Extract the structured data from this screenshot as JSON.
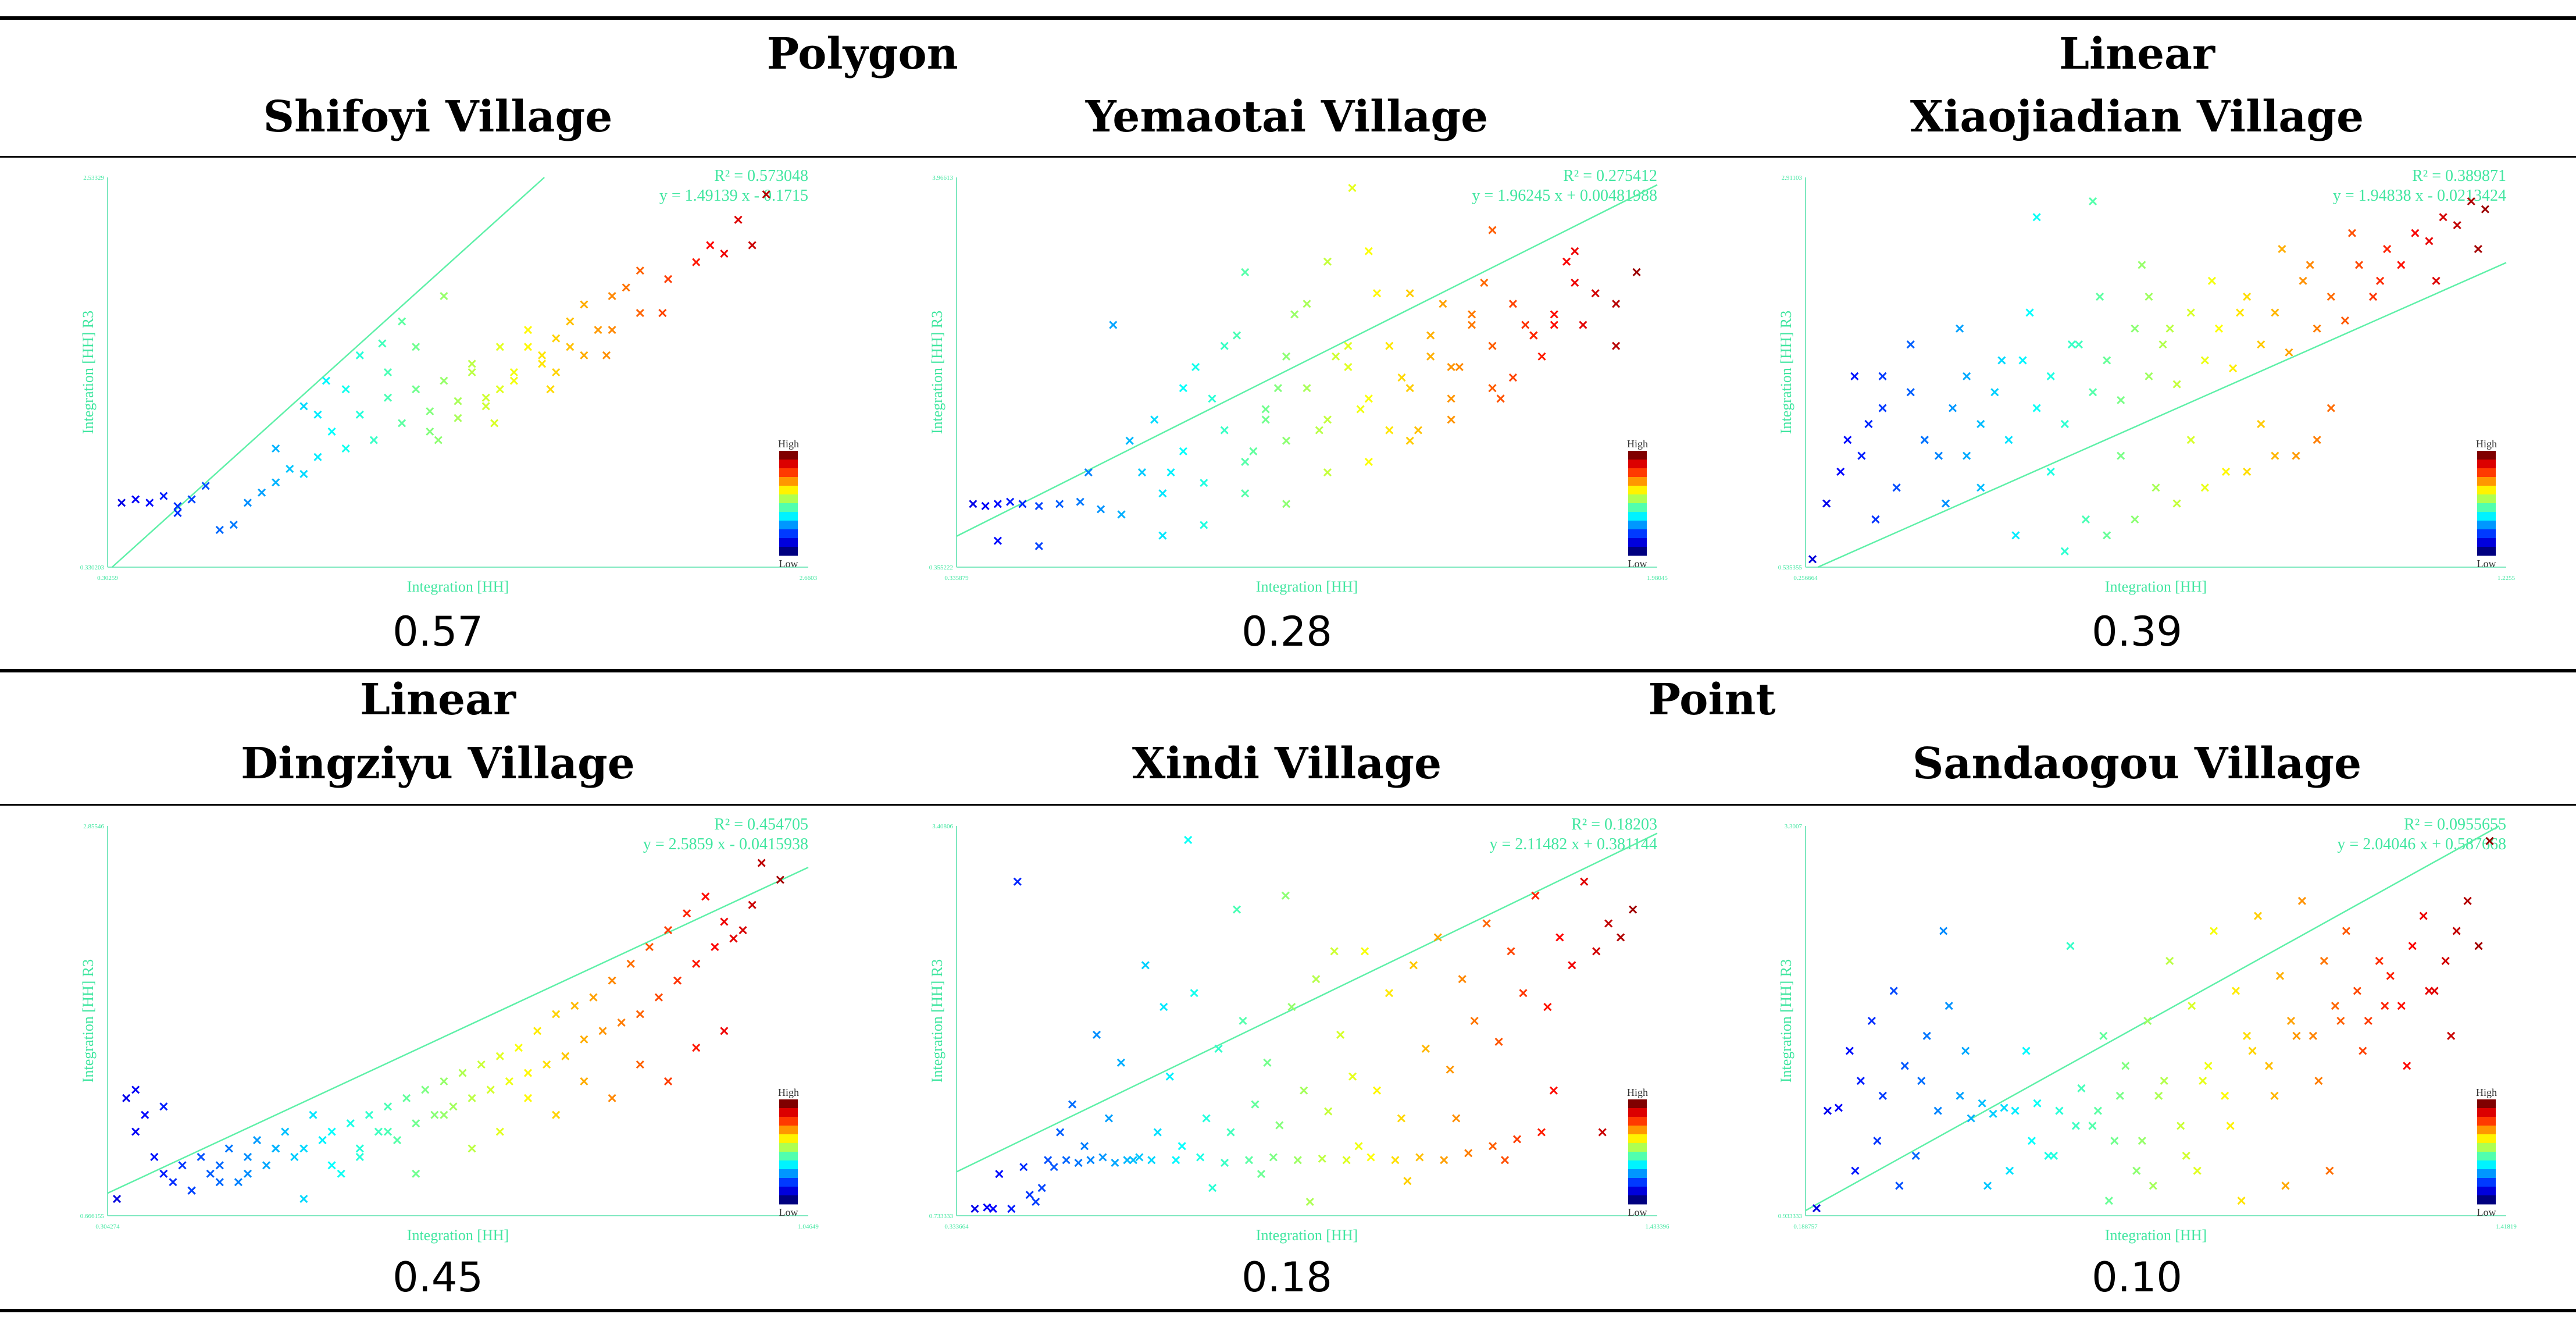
{
  "categories": {
    "polygon": "Polygon",
    "linear_top": "Linear",
    "linear_bottom": "Linear",
    "point": "Point"
  },
  "chart_data": [
    {
      "type": "scatter",
      "title": "Shifoyi Village",
      "category": "Polygon",
      "xlabel": "Integration [HH]",
      "ylabel": "Integration [HH] R3",
      "xlim": [
        0.3,
        2.8
      ],
      "ylim": [
        0.3,
        2.6
      ],
      "x_ticks": [
        "0.30259",
        "2.6603"
      ],
      "y_ticks": [
        "0.330203",
        "2.53329"
      ],
      "r2_label": "R² = 0.573048",
      "equation_label": "y = 1.49139 x - 0.1715",
      "r_squared": 0.573048,
      "slope": 1.49139,
      "intercept": -0.1715,
      "r_value_display": "0.57",
      "legend": {
        "high": "High",
        "low": "Low"
      },
      "x": [
        0.35,
        0.4,
        0.45,
        0.5,
        0.55,
        0.6,
        0.7,
        0.75,
        0.8,
        0.85,
        0.9,
        0.95,
        1.0,
        1.05,
        1.1,
        1.15,
        1.2,
        1.25,
        1.3,
        1.35,
        1.4,
        1.45,
        1.5,
        1.55,
        1.6,
        1.65,
        1.7,
        1.75,
        1.8,
        1.85,
        1.9,
        1.95,
        2.0,
        2.05,
        2.1,
        2.15,
        2.2,
        2.3,
        2.4,
        2.5,
        2.6,
        2.65,
        1.05,
        1.15,
        1.3,
        1.4,
        1.45,
        1.55,
        1.65,
        1.75,
        1.85,
        1.95,
        2.0,
        2.1,
        2.2,
        0.9,
        1.0,
        1.2,
        1.35,
        1.5,
        1.6,
        1.7,
        1.8,
        1.9,
        0.55,
        0.65,
        1.08,
        1.28,
        1.48,
        1.68,
        1.88,
        2.08,
        2.28,
        2.45,
        2.55
      ],
      "y": [
        0.68,
        0.7,
        0.68,
        0.72,
        0.66,
        0.7,
        0.52,
        0.55,
        0.68,
        0.74,
        0.8,
        0.88,
        0.85,
        0.95,
        1.1,
        1.0,
        1.2,
        1.05,
        1.3,
        1.15,
        1.35,
        1.22,
        1.4,
        1.28,
        1.5,
        1.3,
        1.6,
        1.45,
        1.7,
        1.55,
        1.65,
        1.75,
        1.85,
        1.7,
        1.9,
        1.95,
        2.05,
        2.0,
        2.1,
        2.15,
        2.2,
        2.5,
        1.2,
        1.35,
        1.45,
        1.6,
        1.1,
        1.18,
        1.25,
        1.4,
        1.5,
        1.6,
        1.55,
        1.7,
        1.8,
        1.0,
        1.25,
        1.55,
        1.75,
        1.9,
        1.45,
        1.35,
        1.6,
        1.45,
        0.62,
        0.78,
        1.4,
        1.62,
        1.05,
        1.15,
        1.35,
        1.55,
        1.8,
        2.2,
        2.35
      ]
    },
    {
      "type": "scatter",
      "title": "Yemaotai Village",
      "category": "Polygon",
      "xlabel": "Integration [HH]",
      "ylabel": "Integration [HH] R3",
      "xlim": [
        0.3,
        2.0
      ],
      "ylim": [
        0.3,
        4.0
      ],
      "x_ticks": [
        "0.335879",
        "1.98045"
      ],
      "y_ticks": [
        "0.355222",
        "3.96613"
      ],
      "r2_label": "R² = 0.275412",
      "equation_label": "y = 1.96245 x + 0.00481988",
      "r_squared": 0.275412,
      "slope": 1.96245,
      "intercept": 0.00481988,
      "r_value_display": "0.28",
      "legend": {
        "high": "High",
        "low": "Low"
      },
      "x": [
        0.34,
        0.37,
        0.4,
        0.43,
        0.46,
        0.5,
        0.55,
        0.6,
        0.65,
        0.7,
        0.75,
        0.8,
        0.85,
        0.9,
        0.95,
        1.0,
        1.05,
        1.1,
        1.15,
        1.2,
        1.25,
        1.3,
        1.35,
        1.4,
        1.45,
        1.5,
        1.55,
        1.6,
        1.65,
        1.7,
        1.75,
        1.8,
        1.85,
        1.9,
        1.95,
        0.72,
        0.78,
        0.82,
        0.88,
        0.92,
        0.98,
        1.02,
        1.08,
        1.12,
        1.18,
        1.22,
        1.28,
        1.32,
        1.38,
        1.42,
        1.48,
        1.52,
        1.58,
        1.62,
        1.68,
        1.72,
        1.78,
        1.82,
        0.85,
        0.95,
        1.05,
        1.15,
        1.25,
        1.35,
        1.45,
        1.55,
        1.65,
        1.75,
        0.62,
        0.68,
        1.0,
        1.1,
        1.2,
        1.3,
        1.4,
        1.5,
        1.6,
        1.7,
        1.8,
        0.8,
        0.9,
        1.0,
        1.1,
        1.2,
        1.3,
        1.4,
        1.5,
        1.6,
        1.9,
        1.26,
        0.4,
        0.5
      ],
      "y": [
        0.9,
        0.88,
        0.9,
        0.92,
        0.9,
        0.88,
        0.9,
        0.92,
        0.85,
        0.8,
        1.2,
        1.0,
        1.4,
        1.1,
        1.6,
        1.3,
        1.8,
        1.5,
        2.0,
        1.7,
        2.2,
        1.9,
        2.4,
        2.0,
        2.5,
        2.2,
        2.6,
        2.4,
        2.8,
        2.5,
        2.7,
        3.0,
        2.9,
        2.8,
        3.1,
        1.5,
        1.7,
        1.2,
        2.2,
        1.9,
        2.5,
        1.4,
        2.0,
        2.7,
        1.6,
        2.3,
        1.8,
        2.9,
        2.1,
        1.6,
        2.8,
        2.2,
        3.0,
        1.9,
        2.6,
        2.3,
        3.2,
        2.6,
        2.0,
        2.4,
        1.7,
        2.8,
        2.4,
        1.6,
        2.3,
        2.7,
        2.1,
        2.6,
        1.2,
        2.6,
        3.1,
        2.3,
        3.2,
        3.3,
        2.9,
        1.9,
        3.5,
        2.5,
        3.3,
        0.6,
        0.7,
        1.0,
        0.9,
        1.2,
        1.3,
        1.5,
        1.7,
        2.0,
        2.4,
        3.9,
        0.55,
        0.5
      ]
    },
    {
      "type": "scatter",
      "title": "Xiaojiadian Village",
      "category": "Linear",
      "xlabel": "Integration [HH]",
      "ylabel": "Integration [HH] R3",
      "xlim": [
        0.25,
        1.25
      ],
      "ylim": [
        0.5,
        2.95
      ],
      "x_ticks": [
        "0.256664",
        "1.2255"
      ],
      "y_ticks": [
        "0.535355",
        "2.91103"
      ],
      "r2_label": "R² = 0.389871",
      "equation_label": "y = 1.94838 x - 0.0213424",
      "r_squared": 0.389871,
      "slope": 1.94838,
      "intercept": -0.0213424,
      "r_value_display": "0.39",
      "legend": {
        "high": "High",
        "low": "Low"
      },
      "x": [
        0.26,
        0.28,
        0.3,
        0.31,
        0.32,
        0.33,
        0.34,
        0.35,
        0.36,
        0.38,
        0.4,
        0.42,
        0.44,
        0.46,
        0.48,
        0.5,
        0.52,
        0.54,
        0.56,
        0.58,
        0.6,
        0.62,
        0.64,
        0.66,
        0.68,
        0.7,
        0.72,
        0.74,
        0.76,
        0.78,
        0.8,
        0.82,
        0.84,
        0.86,
        0.88,
        0.9,
        0.92,
        0.94,
        0.96,
        0.98,
        1.0,
        1.02,
        1.04,
        1.06,
        1.08,
        1.1,
        1.12,
        1.14,
        1.16,
        1.18,
        1.2,
        1.22,
        0.45,
        0.5,
        0.55,
        0.6,
        0.65,
        0.7,
        0.75,
        0.8,
        0.85,
        0.9,
        0.95,
        1.0,
        0.4,
        0.47,
        0.53,
        0.57,
        0.63,
        0.67,
        0.73,
        0.77,
        0.83,
        0.87,
        0.93,
        0.97,
        1.03,
        1.07,
        0.62,
        0.68,
        0.72,
        0.78,
        0.82,
        0.88,
        0.92,
        0.98,
        0.36,
        0.42,
        0.48,
        1.15,
        1.21,
        0.58,
        0.66,
        0.74
      ],
      "y": [
        0.55,
        0.9,
        1.1,
        1.3,
        1.7,
        1.2,
        1.4,
        0.8,
        1.5,
        1.0,
        1.6,
        1.3,
        1.2,
        1.5,
        1.7,
        1.4,
        1.6,
        1.3,
        1.8,
        1.5,
        1.7,
        1.4,
        1.9,
        1.6,
        1.8,
        1.55,
        2.0,
        1.7,
        1.9,
        1.65,
        2.1,
        1.8,
        2.0,
        1.75,
        2.2,
        1.9,
        2.1,
        1.85,
        2.3,
        2.0,
        2.2,
        2.05,
        2.4,
        2.2,
        2.5,
        2.4,
        2.6,
        2.55,
        2.7,
        2.65,
        2.8,
        2.75,
        0.9,
        1.0,
        0.7,
        1.1,
        0.8,
        1.2,
        1.0,
        1.3,
        1.1,
        1.4,
        1.2,
        1.5,
        1.9,
        2.0,
        1.8,
        2.1,
        1.9,
        2.2,
        2.4,
        2.0,
        2.3,
        2.1,
        2.5,
        2.4,
        2.6,
        2.3,
        0.6,
        0.7,
        0.8,
        0.9,
        1.0,
        1.1,
        1.2,
        1.3,
        1.7,
        1.3,
        1.2,
        2.3,
        2.5,
        2.7,
        2.8,
        2.2
      ]
    },
    {
      "type": "scatter",
      "title": "Dingziyu Village",
      "category": "Linear",
      "xlabel": "Integration [HH]",
      "ylabel": "Integration [HH] R3",
      "xlim": [
        0.3,
        1.05
      ],
      "ylim": [
        0.6,
        2.92
      ],
      "x_ticks": [
        "0.304274",
        "1.04649"
      ],
      "y_ticks": [
        "0.666155",
        "2.85546"
      ],
      "r2_label": "R² = 0.454705",
      "equation_label": "y = 2.5859 x - 0.0415938",
      "r_squared": 0.454705,
      "slope": 2.5859,
      "intercept": -0.0415938,
      "r_value_display": "0.45",
      "legend": {
        "high": "High",
        "low": "Low"
      },
      "x": [
        0.31,
        0.32,
        0.33,
        0.34,
        0.35,
        0.36,
        0.37,
        0.38,
        0.39,
        0.4,
        0.41,
        0.42,
        0.43,
        0.44,
        0.45,
        0.46,
        0.47,
        0.48,
        0.49,
        0.5,
        0.51,
        0.52,
        0.53,
        0.54,
        0.55,
        0.56,
        0.57,
        0.58,
        0.59,
        0.6,
        0.61,
        0.62,
        0.63,
        0.64,
        0.65,
        0.66,
        0.67,
        0.68,
        0.69,
        0.7,
        0.71,
        0.72,
        0.73,
        0.74,
        0.75,
        0.76,
        0.77,
        0.78,
        0.79,
        0.8,
        0.81,
        0.82,
        0.83,
        0.84,
        0.85,
        0.86,
        0.87,
        0.88,
        0.89,
        0.9,
        0.91,
        0.92,
        0.93,
        0.94,
        0.95,
        0.96,
        0.97,
        0.98,
        0.99,
        1.0,
        1.02,
        0.33,
        0.36,
        0.39,
        0.42,
        0.45,
        0.48,
        0.51,
        0.54,
        0.57,
        0.6,
        0.63,
        0.66,
        0.69,
        0.72,
        0.75,
        0.78,
        0.81,
        0.84,
        0.87,
        0.9,
        0.93,
        0.96
      ],
      "y": [
        0.7,
        1.3,
        1.1,
        1.2,
        0.95,
        0.85,
        0.8,
        0.9,
        0.75,
        0.95,
        0.85,
        0.9,
        1.0,
        0.8,
        0.95,
        1.05,
        0.9,
        1.0,
        1.1,
        0.95,
        1.0,
        1.2,
        1.05,
        1.1,
        0.85,
        1.15,
        1.0,
        1.2,
        1.1,
        1.25,
        1.05,
        1.3,
        1.15,
        1.35,
        1.2,
        1.4,
        1.25,
        1.45,
        1.3,
        1.5,
        1.35,
        1.55,
        1.4,
        1.6,
        1.45,
        1.7,
        1.5,
        1.8,
        1.55,
        1.85,
        1.65,
        1.9,
        1.7,
        2.0,
        1.75,
        2.1,
        1.8,
        2.2,
        1.9,
        2.3,
        2.0,
        2.4,
        2.1,
        2.5,
        2.2,
        2.35,
        2.25,
        2.3,
        2.45,
        2.7,
        2.6,
        1.35,
        1.25,
        0.75,
        0.8,
        0.85,
        1.0,
        0.7,
        0.9,
        0.95,
        1.1,
        0.85,
        1.2,
        1.0,
        1.1,
        1.3,
        1.2,
        1.4,
        1.3,
        1.5,
        1.4,
        1.6,
        1.7
      ]
    },
    {
      "type": "scatter",
      "title": "Xindi Village",
      "category": "Point",
      "xlabel": "Integration [HH]",
      "ylabel": "Integration [HH] R3",
      "xlim": [
        0.3,
        1.45
      ],
      "ylim": [
        0.7,
        3.5
      ],
      "x_ticks": [
        "0.333664",
        "1.433396"
      ],
      "y_ticks": [
        "0.733333",
        "3.40806"
      ],
      "r2_label": "R² = 0.18203",
      "equation_label": "y = 2.11482 x + 0.381144",
      "r_squared": 0.18203,
      "slope": 2.11482,
      "intercept": 0.381144,
      "r_value_display": "0.18",
      "legend": {
        "high": "High",
        "low": "Low"
      },
      "x": [
        0.33,
        0.35,
        0.37,
        0.39,
        0.41,
        0.43,
        0.45,
        0.47,
        0.49,
        0.51,
        0.53,
        0.55,
        0.57,
        0.59,
        0.61,
        0.63,
        0.65,
        0.67,
        0.69,
        0.71,
        0.73,
        0.75,
        0.77,
        0.79,
        0.81,
        0.83,
        0.85,
        0.87,
        0.89,
        0.91,
        0.93,
        0.95,
        0.97,
        0.99,
        1.01,
        1.03,
        1.05,
        1.07,
        1.09,
        1.11,
        1.13,
        1.15,
        1.17,
        1.19,
        1.21,
        1.23,
        1.25,
        1.27,
        1.29,
        1.31,
        1.33,
        1.35,
        1.37,
        1.39,
        1.41,
        0.46,
        0.48,
        0.5,
        0.52,
        0.54,
        0.56,
        0.58,
        0.6,
        0.62,
        0.66,
        0.7,
        0.74,
        0.78,
        0.82,
        0.86,
        0.9,
        0.94,
        0.98,
        1.02,
        1.06,
        1.1,
        1.14,
        1.18,
        1.22,
        1.26,
        0.4,
        0.44,
        0.64,
        0.72,
        0.8,
        0.88,
        0.96,
        1.04,
        1.12,
        1.2,
        1.28,
        1.36,
        0.36,
        0.42,
        0.68,
        0.76,
        0.84,
        0.92
      ],
      "y": [
        0.75,
        0.76,
        1.0,
        0.75,
        1.05,
        0.8,
        1.1,
        1.3,
        1.5,
        1.2,
        2.0,
        1.4,
        1.8,
        1.1,
        2.5,
        1.3,
        1.7,
        1.2,
        2.3,
        1.4,
        1.9,
        1.3,
        2.1,
        1.5,
        1.8,
        1.35,
        2.2,
        1.6,
        2.4,
        1.45,
        2.0,
        1.7,
        2.6,
        1.6,
        2.3,
        1.4,
        2.5,
        1.9,
        2.7,
        1.75,
        2.4,
        2.1,
        2.8,
        1.95,
        2.6,
        2.3,
        3.0,
        2.2,
        2.7,
        2.5,
        3.1,
        2.6,
        2.8,
        2.7,
        2.9,
        1.05,
        1.1,
        1.08,
        1.1,
        1.12,
        1.08,
        1.1,
        1.12,
        1.1,
        1.1,
        1.12,
        1.08,
        1.1,
        1.12,
        1.1,
        1.11,
        1.1,
        1.12,
        1.1,
        1.12,
        1.1,
        1.15,
        1.2,
        1.25,
        1.3,
        3.1,
        0.9,
        2.2,
        0.9,
        1.0,
        0.8,
        1.2,
        0.95,
        1.4,
        1.1,
        1.6,
        1.3,
        0.75,
        0.85,
        3.4,
        2.9,
        3.0,
        2.6
      ]
    },
    {
      "type": "scatter",
      "title": "Sandaogou Village",
      "category": "Point",
      "xlabel": "Integration [HH]",
      "ylabel": "Integration [HH] R3",
      "xlim": [
        0.17,
        1.44
      ],
      "ylim": [
        0.9,
        3.5
      ],
      "x_ticks": [
        "0.188757",
        "1.41819"
      ],
      "y_ticks": [
        "0.933333",
        "3.3007"
      ],
      "r2_label": "R² = 0.0955655",
      "equation_label": "y = 2.04046 x + 0.587668",
      "r_squared": 0.0955655,
      "slope": 2.04046,
      "intercept": 0.587668,
      "r_value_display": "0.10",
      "legend": {
        "high": "High",
        "low": "Low"
      },
      "x": [
        0.19,
        0.21,
        0.23,
        0.25,
        0.27,
        0.29,
        0.31,
        0.33,
        0.35,
        0.37,
        0.39,
        0.41,
        0.43,
        0.45,
        0.47,
        0.49,
        0.51,
        0.53,
        0.55,
        0.57,
        0.59,
        0.61,
        0.63,
        0.65,
        0.67,
        0.69,
        0.71,
        0.73,
        0.75,
        0.77,
        0.79,
        0.81,
        0.83,
        0.85,
        0.87,
        0.89,
        0.91,
        0.93,
        0.95,
        0.97,
        0.99,
        1.01,
        1.03,
        1.05,
        1.07,
        1.09,
        1.11,
        1.13,
        1.15,
        1.17,
        1.19,
        1.21,
        1.23,
        1.25,
        1.27,
        1.29,
        1.31,
        1.33,
        1.35,
        1.37,
        1.39,
        1.41,
        0.26,
        0.3,
        0.34,
        0.38,
        0.42,
        0.46,
        0.5,
        0.54,
        0.58,
        0.62,
        0.66,
        0.7,
        0.74,
        0.78,
        0.82,
        0.86,
        0.9,
        0.94,
        0.98,
        1.02,
        1.06,
        1.1,
        1.14,
        1.18,
        1.22,
        1.26,
        1.3,
        1.34,
        0.72,
        0.8,
        0.88,
        0.96,
        1.04,
        1.12
      ],
      "y": [
        0.95,
        1.6,
        1.62,
        2.0,
        1.8,
        2.2,
        1.7,
        2.4,
        1.9,
        1.3,
        2.1,
        1.6,
        2.3,
        1.7,
        1.55,
        1.65,
        1.58,
        1.62,
        1.6,
        2.0,
        1.65,
        1.3,
        1.6,
        2.7,
        1.75,
        1.5,
        2.1,
        1.4,
        1.9,
        1.2,
        2.2,
        1.7,
        2.6,
        1.5,
        2.3,
        1.8,
        2.8,
        1.7,
        2.4,
        2.1,
        2.9,
        1.9,
        2.5,
        2.2,
        3.0,
        2.1,
        2.6,
        2.3,
        2.8,
        2.4,
        2.2,
        2.6,
        2.5,
        2.3,
        2.7,
        2.9,
        2.4,
        2.6,
        2.8,
        3.0,
        2.7,
        3.4,
        1.2,
        1.4,
        1.1,
        1.8,
        2.8,
        2.0,
        1.1,
        1.2,
        1.4,
        1.3,
        1.5,
        1.6,
        1.7,
        1.4,
        1.8,
        1.3,
        1.9,
        1.5,
        2.0,
        1.7,
        2.1,
        1.8,
        2.2,
        2.0,
        2.3,
        1.9,
        2.4,
        2.1,
        1.0,
        1.1,
        1.2,
        1.0,
        1.1,
        1.2
      ]
    }
  ]
}
